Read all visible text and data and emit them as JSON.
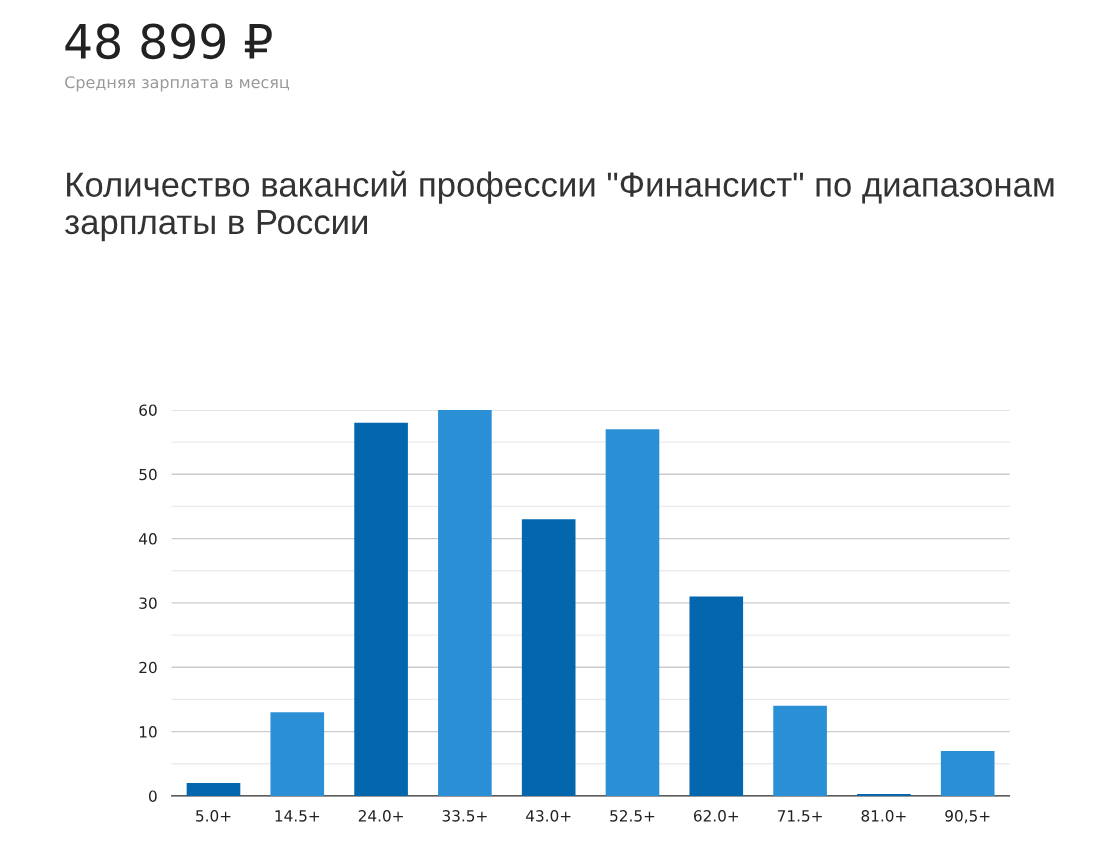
{
  "chart_data": {
    "type": "bar",
    "title": "Количество вакансий профессии \"Финансист\" по диапазонам зарплаты в России",
    "annotations": [
      "48 899 ₽",
      "Средняя зарплата в месяц"
    ],
    "categories": [
      "5.0+",
      "14.5+",
      "24.0+",
      "33.5+",
      "43.0+",
      "52.5+",
      "62.0+",
      "71.5+",
      "81.0+",
      "90,5+"
    ],
    "values": [
      2,
      13,
      58,
      60,
      43,
      57,
      31,
      14,
      0.3,
      7
    ],
    "colors": [
      "#0466ad",
      "#2b8fd6",
      "#0466ad",
      "#2b8fd6",
      "#0466ad",
      "#2b8fd6",
      "#0466ad",
      "#2b8fd6",
      "#0466ad",
      "#2b8fd6"
    ],
    "ylim": [
      0,
      60
    ],
    "yticks": [
      0,
      {
        "value": 5,
        "label": null
      },
      10,
      {
        "value": 15,
        "label": null
      },
      20,
      {
        "value": 25,
        "label": null
      },
      30,
      {
        "value": 35,
        "label": null
      },
      40,
      {
        "value": 45,
        "label": null
      },
      50,
      {
        "value": 55,
        "label": null
      },
      60
    ],
    "grid": "y",
    "legend": false
  }
}
